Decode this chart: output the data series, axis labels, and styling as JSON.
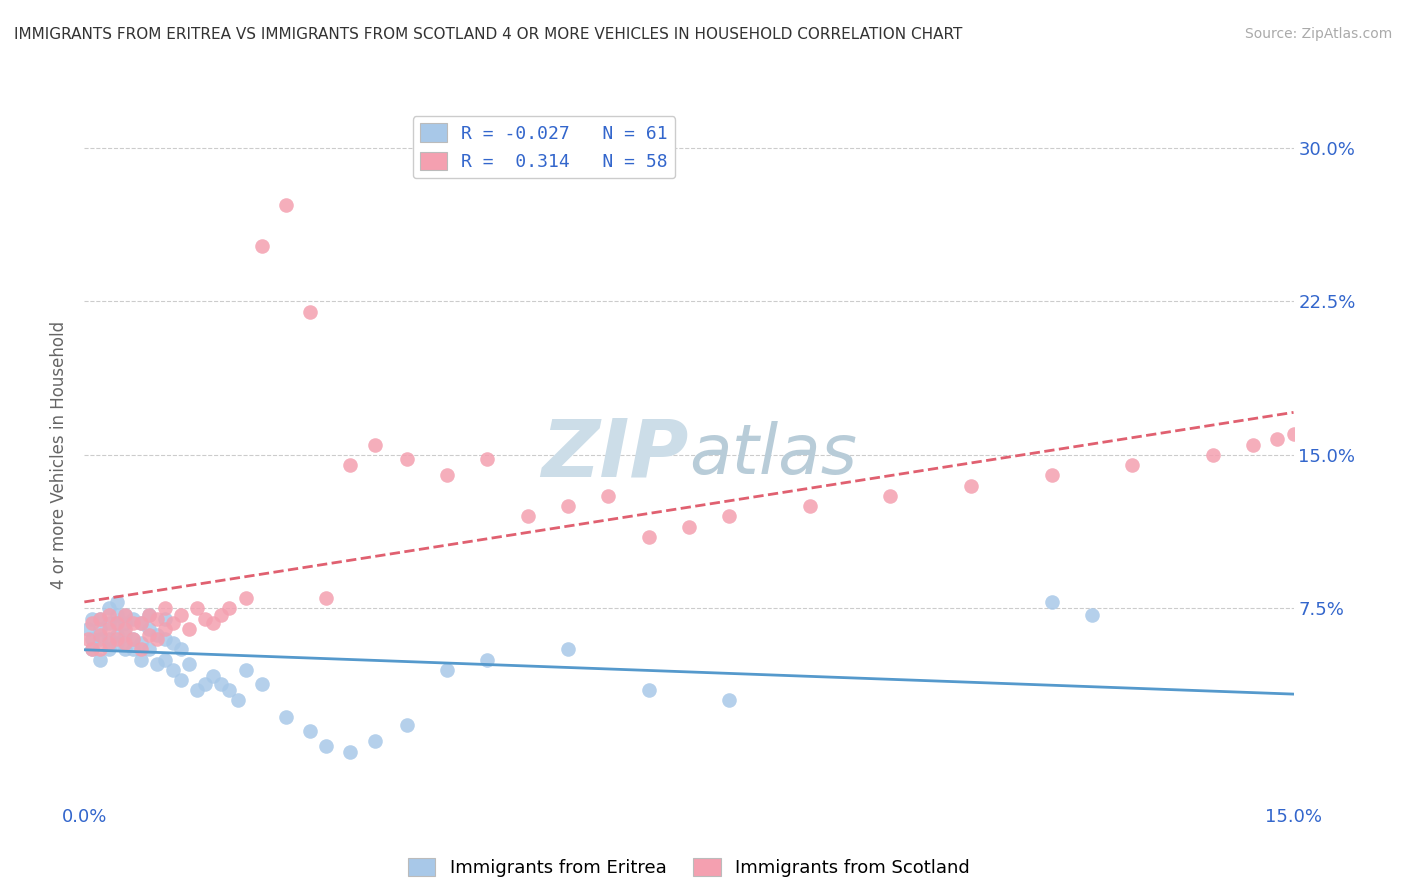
{
  "title": "IMMIGRANTS FROM ERITREA VS IMMIGRANTS FROM SCOTLAND 4 OR MORE VEHICLES IN HOUSEHOLD CORRELATION CHART",
  "source": "Source: ZipAtlas.com",
  "ylabel": "4 or more Vehicles in Household",
  "xlim": [
    0.0,
    0.15
  ],
  "ylim": [
    -0.02,
    0.32
  ],
  "yticks": [
    0.075,
    0.15,
    0.225,
    0.3
  ],
  "yticklabels": [
    "7.5%",
    "15.0%",
    "22.5%",
    "30.0%"
  ],
  "r_eritrea": -0.027,
  "n_eritrea": 61,
  "r_scotland": 0.314,
  "n_scotland": 58,
  "color_eritrea": "#a8c8e8",
  "color_scotland": "#f4a0b0",
  "line_color_eritrea": "#5599cc",
  "line_color_scotland": "#e06070",
  "watermark_color": "#ccdde8",
  "background_color": "#ffffff",
  "scatter_eritrea_x": [
    0.0005,
    0.001,
    0.001,
    0.001,
    0.002,
    0.002,
    0.002,
    0.002,
    0.003,
    0.003,
    0.003,
    0.003,
    0.004,
    0.004,
    0.004,
    0.004,
    0.004,
    0.005,
    0.005,
    0.005,
    0.005,
    0.006,
    0.006,
    0.006,
    0.007,
    0.007,
    0.007,
    0.008,
    0.008,
    0.008,
    0.009,
    0.009,
    0.01,
    0.01,
    0.01,
    0.011,
    0.011,
    0.012,
    0.012,
    0.013,
    0.014,
    0.015,
    0.016,
    0.017,
    0.018,
    0.019,
    0.02,
    0.022,
    0.025,
    0.028,
    0.03,
    0.033,
    0.036,
    0.04,
    0.045,
    0.05,
    0.06,
    0.07,
    0.08,
    0.12,
    0.125
  ],
  "scatter_eritrea_y": [
    0.065,
    0.055,
    0.06,
    0.07,
    0.05,
    0.06,
    0.065,
    0.07,
    0.055,
    0.06,
    0.068,
    0.075,
    0.058,
    0.062,
    0.068,
    0.072,
    0.078,
    0.055,
    0.062,
    0.068,
    0.072,
    0.055,
    0.06,
    0.07,
    0.05,
    0.058,
    0.068,
    0.055,
    0.065,
    0.072,
    0.048,
    0.062,
    0.05,
    0.06,
    0.07,
    0.045,
    0.058,
    0.04,
    0.055,
    0.048,
    0.035,
    0.038,
    0.042,
    0.038,
    0.035,
    0.03,
    0.045,
    0.038,
    0.022,
    0.015,
    0.008,
    0.005,
    0.01,
    0.018,
    0.045,
    0.05,
    0.055,
    0.035,
    0.03,
    0.078,
    0.072
  ],
  "scatter_scotland_x": [
    0.0005,
    0.001,
    0.001,
    0.002,
    0.002,
    0.002,
    0.003,
    0.003,
    0.003,
    0.004,
    0.004,
    0.005,
    0.005,
    0.005,
    0.006,
    0.006,
    0.007,
    0.007,
    0.008,
    0.008,
    0.009,
    0.009,
    0.01,
    0.01,
    0.011,
    0.012,
    0.013,
    0.014,
    0.015,
    0.016,
    0.017,
    0.018,
    0.02,
    0.022,
    0.025,
    0.028,
    0.03,
    0.033,
    0.036,
    0.04,
    0.045,
    0.05,
    0.055,
    0.06,
    0.065,
    0.07,
    0.075,
    0.08,
    0.09,
    0.1,
    0.11,
    0.12,
    0.13,
    0.14,
    0.145,
    0.148,
    0.15,
    0.152
  ],
  "scatter_scotland_y": [
    0.06,
    0.055,
    0.068,
    0.055,
    0.062,
    0.07,
    0.058,
    0.065,
    0.072,
    0.06,
    0.068,
    0.058,
    0.065,
    0.072,
    0.06,
    0.068,
    0.055,
    0.068,
    0.062,
    0.072,
    0.06,
    0.07,
    0.065,
    0.075,
    0.068,
    0.072,
    0.065,
    0.075,
    0.07,
    0.068,
    0.072,
    0.075,
    0.08,
    0.252,
    0.272,
    0.22,
    0.08,
    0.145,
    0.155,
    0.148,
    0.14,
    0.148,
    0.12,
    0.125,
    0.13,
    0.11,
    0.115,
    0.12,
    0.125,
    0.13,
    0.135,
    0.14,
    0.145,
    0.15,
    0.155,
    0.158,
    0.16,
    0.16
  ]
}
